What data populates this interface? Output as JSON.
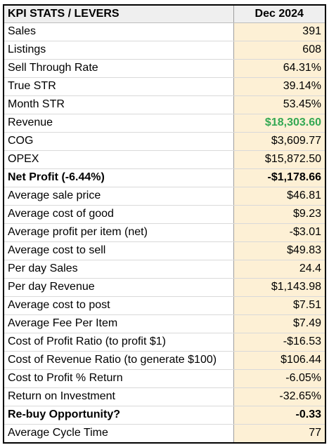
{
  "header": {
    "label_col": "KPI STATS / LEVERS",
    "value_col": "Dec 2024"
  },
  "rows": [
    {
      "label": "Sales",
      "value": "391"
    },
    {
      "label": "Listings",
      "value": "608"
    },
    {
      "label": "Sell Through Rate",
      "value": "64.31%"
    },
    {
      "label": "True STR",
      "value": "39.14%"
    },
    {
      "label": "Month STR",
      "value": "53.45%"
    },
    {
      "label": "Revenue",
      "value": "$18,303.60",
      "value_color": "#34a853"
    },
    {
      "label": "COG",
      "value": "$3,609.77"
    },
    {
      "label": "OPEX",
      "value": "$15,872.50"
    },
    {
      "label": "Net Profit (-6.44%)",
      "value": "-$1,178.66"
    },
    {
      "label": "Average sale price",
      "value": "$46.81"
    },
    {
      "label": "Average cost of good",
      "value": "$9.23"
    },
    {
      "label": "Average profit per item (net)",
      "value": "-$3.01"
    },
    {
      "label": "Average cost to sell",
      "value": "$49.83"
    },
    {
      "label": "Per day Sales",
      "value": "24.4"
    },
    {
      "label": "Per day Revenue",
      "value": "$1,143.98"
    },
    {
      "label": "Average cost to post",
      "value": "$7.51"
    },
    {
      "label": "Average Fee Per Item",
      "value": "$7.49"
    },
    {
      "label": "Cost of Profit Ratio (to profit $1)",
      "value": "-$16.53"
    },
    {
      "label": "Cost of Revenue Ratio (to generate $100)",
      "value": "$106.44"
    },
    {
      "label": "Cost to Profit % Return",
      "value": "-6.05%"
    },
    {
      "label": "Return on Investment",
      "value": "-32.65%"
    },
    {
      "label": "Re-buy Opportunity?",
      "value": "-0.33"
    },
    {
      "label": "Average Cycle Time",
      "value": "77"
    }
  ],
  "colors": {
    "header_bg": "#efefef",
    "value_bg": "#fdf0d5",
    "revenue_green": "#34a853"
  }
}
